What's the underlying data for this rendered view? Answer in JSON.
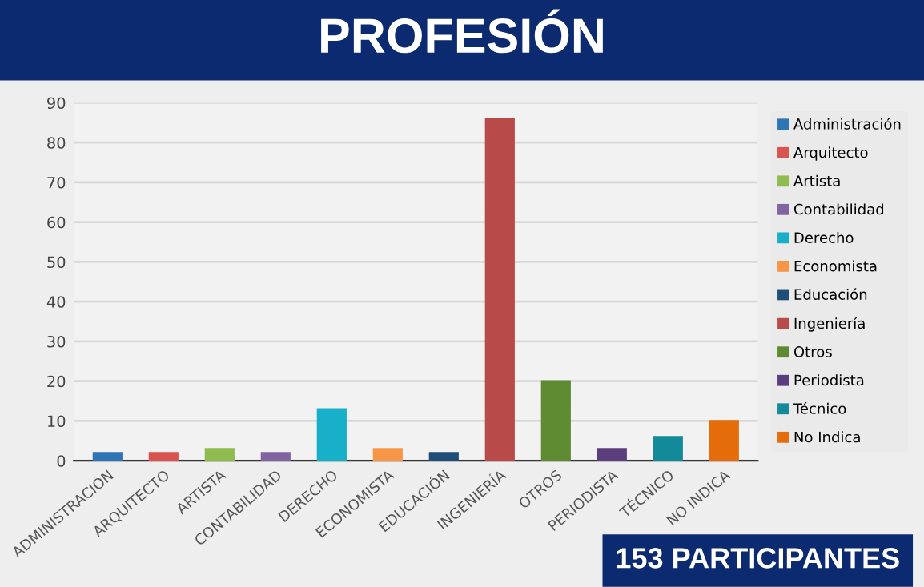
{
  "chart_data": {
    "type": "bar",
    "title": "PROFESIÓN",
    "categories": [
      "ADMINISTRACIÓN",
      "ARQUITECTO",
      "ARTISTA",
      "CONTABILIDAD",
      "DERECHO",
      "ECONOMISTA",
      "EDUCACIÓN",
      "INGENIERÍA",
      "OTROS",
      "PERIODISTA",
      "TÉCNICO",
      "NO INDICA"
    ],
    "series": [
      {
        "name": "Administración",
        "color": "#2e75b6",
        "values": [
          2,
          null,
          null,
          null,
          null,
          null,
          null,
          null,
          null,
          null,
          null,
          null
        ]
      },
      {
        "name": "Arquitecto",
        "color": "#d9534f",
        "values": [
          null,
          2,
          null,
          null,
          null,
          null,
          null,
          null,
          null,
          null,
          null,
          null
        ]
      },
      {
        "name": "Artista",
        "color": "#8fbc4f",
        "values": [
          null,
          null,
          3,
          null,
          null,
          null,
          null,
          null,
          null,
          null,
          null,
          null
        ]
      },
      {
        "name": "Contabilidad",
        "color": "#8064a2",
        "values": [
          null,
          null,
          null,
          2,
          null,
          null,
          null,
          null,
          null,
          null,
          null,
          null
        ]
      },
      {
        "name": "Derecho",
        "color": "#17b0c8",
        "values": [
          null,
          null,
          null,
          null,
          13,
          null,
          null,
          null,
          null,
          null,
          null,
          null
        ]
      },
      {
        "name": "Economista",
        "color": "#f79646",
        "values": [
          null,
          null,
          null,
          null,
          null,
          3,
          null,
          null,
          null,
          null,
          null,
          null
        ]
      },
      {
        "name": "Educación",
        "color": "#1f4e79",
        "values": [
          null,
          null,
          null,
          null,
          null,
          null,
          2,
          null,
          null,
          null,
          null,
          null
        ]
      },
      {
        "name": "Ingeniería",
        "color": "#b84a4a",
        "values": [
          null,
          null,
          null,
          null,
          null,
          null,
          null,
          86,
          null,
          null,
          null,
          null
        ]
      },
      {
        "name": "Otros",
        "color": "#5e8a32",
        "values": [
          null,
          null,
          null,
          null,
          null,
          null,
          null,
          null,
          20,
          null,
          null,
          null
        ]
      },
      {
        "name": "Periodista",
        "color": "#5b3f7d",
        "values": [
          null,
          null,
          null,
          null,
          null,
          null,
          null,
          null,
          null,
          3,
          null,
          null
        ]
      },
      {
        "name": "Técnico",
        "color": "#138a99",
        "values": [
          null,
          null,
          null,
          null,
          null,
          null,
          null,
          null,
          null,
          null,
          6,
          null
        ]
      },
      {
        "name": "No Indica",
        "color": "#e46c0a",
        "values": [
          null,
          null,
          null,
          null,
          null,
          null,
          null,
          null,
          null,
          null,
          null,
          10
        ]
      }
    ],
    "ylim": [
      0,
      90
    ],
    "yticks": [
      0,
      10,
      20,
      30,
      40,
      50,
      60,
      70,
      80,
      90
    ],
    "grid": "y",
    "legend": "right",
    "annotations": [
      "153 PARTICIPANTES"
    ]
  }
}
